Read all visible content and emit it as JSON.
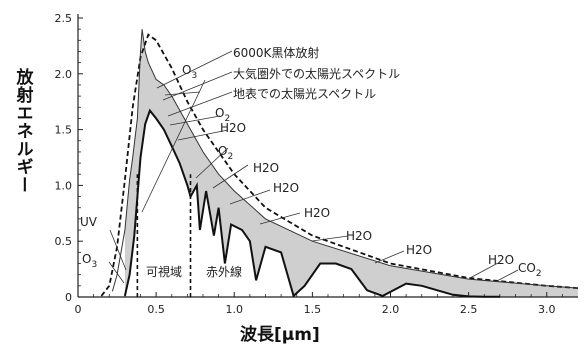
{
  "chart_data": {
    "type": "line",
    "xlabel": "波長[μm]",
    "ylabel": "放射エネルギー",
    "xlim": [
      0,
      3.2
    ],
    "ylim": [
      0,
      2.5
    ],
    "x_ticks": [
      0,
      0.5,
      1.0,
      1.5,
      2.0,
      2.5,
      3.0
    ],
    "x_tick_labels": [
      "0",
      "0.5",
      "1.0",
      "1.5",
      "2.0",
      "2.5",
      "3.0"
    ],
    "y_ticks": [
      0,
      0.5,
      1.0,
      1.5,
      2.0,
      2.5
    ],
    "y_tick_labels": [
      "0",
      "0.5",
      "1.0",
      "1.5",
      "2.0",
      "2.5"
    ],
    "grid": false,
    "series": [
      {
        "name": "6000K黒体放射",
        "style": "dashed",
        "x": [
          0.15,
          0.2,
          0.25,
          0.3,
          0.35,
          0.4,
          0.45,
          0.5,
          0.6,
          0.7,
          0.8,
          1.0,
          1.2,
          1.5,
          2.0,
          2.5,
          3.0,
          3.2
        ],
        "y": [
          0.01,
          0.1,
          0.45,
          1.05,
          1.7,
          2.15,
          2.35,
          2.3,
          2.05,
          1.75,
          1.5,
          1.1,
          0.8,
          0.55,
          0.3,
          0.17,
          0.1,
          0.08
        ]
      },
      {
        "name": "大気圏外での太陽光スペクトル",
        "style": "solid-thin",
        "x": [
          0.22,
          0.25,
          0.3,
          0.33,
          0.35,
          0.38,
          0.4,
          0.41,
          0.43,
          0.45,
          0.5,
          0.55,
          0.6,
          0.7,
          0.8,
          0.9,
          1.0,
          1.2,
          1.5,
          2.0,
          2.5,
          3.0,
          3.2
        ],
        "y": [
          0.05,
          0.2,
          0.6,
          1.05,
          1.25,
          1.6,
          2.2,
          2.4,
          2.2,
          2.1,
          1.95,
          1.9,
          1.8,
          1.55,
          1.3,
          1.1,
          0.95,
          0.7,
          0.5,
          0.28,
          0.16,
          0.1,
          0.08
        ]
      },
      {
        "name": "地表での太陽光スペクトル",
        "style": "solid-thick",
        "x": [
          0.3,
          0.33,
          0.36,
          0.4,
          0.43,
          0.46,
          0.5,
          0.55,
          0.6,
          0.65,
          0.7,
          0.72,
          0.76,
          0.78,
          0.82,
          0.87,
          0.9,
          0.94,
          0.98,
          1.05,
          1.1,
          1.14,
          1.2,
          1.3,
          1.38,
          1.45,
          1.55,
          1.65,
          1.75,
          1.85,
          1.95,
          2.1,
          2.2,
          2.3,
          2.4,
          2.5,
          2.6,
          2.7
        ],
        "y": [
          0.01,
          0.2,
          0.55,
          1.25,
          1.55,
          1.67,
          1.6,
          1.5,
          1.35,
          1.2,
          1.0,
          0.9,
          1.0,
          0.6,
          0.95,
          0.55,
          0.8,
          0.3,
          0.65,
          0.6,
          0.5,
          0.15,
          0.45,
          0.4,
          0.01,
          0.1,
          0.3,
          0.3,
          0.25,
          0.06,
          0.01,
          0.12,
          0.1,
          0.06,
          0.02,
          0.005,
          0.003,
          0.002
        ]
      }
    ],
    "region_labels": [
      "UV",
      "可視域",
      "赤外線"
    ],
    "region_boundaries": [
      0.38,
      0.72
    ],
    "absorption_labels": [
      "O3",
      "O3",
      "O2",
      "H2O",
      "O2",
      "H2O",
      "H2O",
      "H2O",
      "H2O",
      "H2O",
      "H2O",
      "CO2"
    ]
  }
}
